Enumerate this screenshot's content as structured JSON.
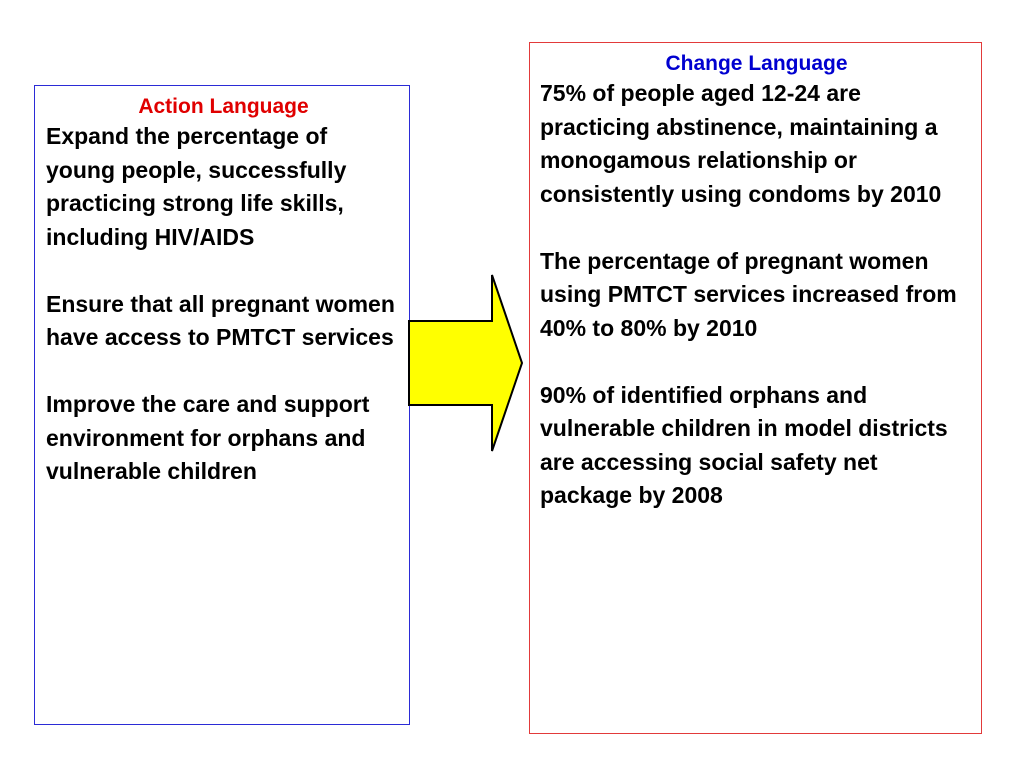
{
  "colors": {
    "action_title": "#e00000",
    "change_title": "#0000d0",
    "left_border": "#2b2bd6",
    "right_border": "#e23a3a",
    "arrow_fill": "#ffff00",
    "arrow_stroke": "#000000"
  },
  "action_box": {
    "title": "Action Language",
    "paragraphs": [
      "Expand the percentage of young people, successfully practicing strong life skills, including HIV/AIDS",
      "Ensure that all  pregnant women have access to PMTCT services",
      "Improve the care and support environment for orphans and vulnerable children"
    ]
  },
  "arrow": {
    "icon": "right-arrow-icon"
  },
  "change_box": {
    "title": "Change Language",
    "paragraphs": [
      "75% of people aged 12-24 are practicing abstinence, maintaining a monogamous relationship or consistently using condoms by 2010",
      "The percentage of pregnant women using PMTCT services increased from 40% to 80% by 2010",
      "90% of identified orphans and vulnerable children in model districts are accessing social safety net package by 2008"
    ]
  }
}
